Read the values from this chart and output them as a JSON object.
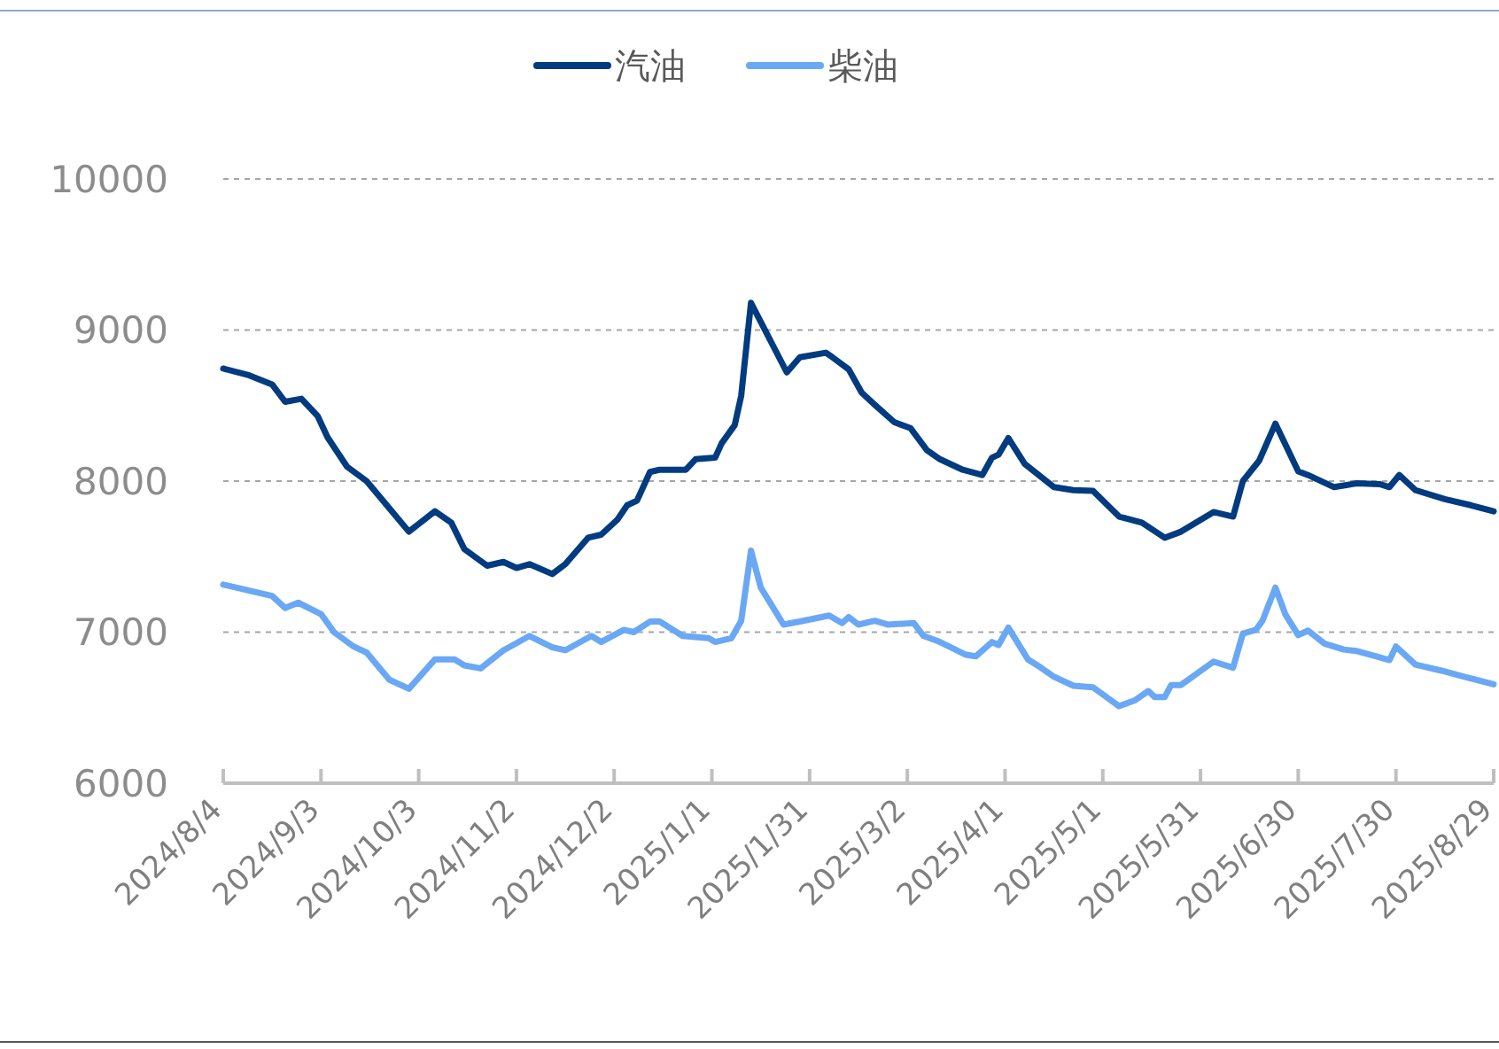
{
  "chart_data": {
    "type": "line",
    "grid": "y",
    "legend": "top",
    "line_style": "solid",
    "marker": "none",
    "xlim": [
      "2024-08-04",
      "2025-08-29"
    ],
    "xticks": [
      {
        "value": "2024-08-04",
        "label": "2024/8/4"
      },
      {
        "value": "2024-09-03",
        "label": "2024/9/3"
      },
      {
        "value": "2024-10-03",
        "label": "2024/10/3"
      },
      {
        "value": "2024-11-02",
        "label": "2024/11/2"
      },
      {
        "value": "2024-12-02",
        "label": "2024/12/2"
      },
      {
        "value": "2025-01-01",
        "label": "2025/1/1"
      },
      {
        "value": "2025-01-31",
        "label": "2025/1/31"
      },
      {
        "value": "2025-03-02",
        "label": "2025/3/2"
      },
      {
        "value": "2025-04-01",
        "label": "2025/4/1"
      },
      {
        "value": "2025-05-01",
        "label": "2025/5/1"
      },
      {
        "value": "2025-05-31",
        "label": "2025/5/31"
      },
      {
        "value": "2025-06-30",
        "label": "2025/6/30"
      },
      {
        "value": "2025-07-30",
        "label": "2025/7/30"
      },
      {
        "value": "2025-08-29",
        "label": "2025/8/29"
      }
    ],
    "ylim": [
      6000,
      10000
    ],
    "yticks": [
      6000,
      7000,
      8000,
      9000,
      10000
    ],
    "series": [
      {
        "name": "汽油",
        "color": "#033b80",
        "x": [
          "2024-08-04",
          "2024-08-12",
          "2024-08-19",
          "2024-08-23",
          "2024-08-28",
          "2024-09-02",
          "2024-09-05",
          "2024-09-11",
          "2024-09-17",
          "2024-09-24",
          "2024-09-30",
          "2024-10-08",
          "2024-10-13",
          "2024-10-17",
          "2024-10-24",
          "2024-10-29",
          "2024-11-02",
          "2024-11-06",
          "2024-11-13",
          "2024-11-17",
          "2024-11-24",
          "2024-11-28",
          "2024-12-03",
          "2024-12-06",
          "2024-12-09",
          "2024-12-13",
          "2024-12-16",
          "2024-12-24",
          "2024-12-27",
          "2025-01-02",
          "2025-01-04",
          "2025-01-08",
          "2025-01-10",
          "2025-01-13",
          "2025-01-24",
          "2025-01-28",
          "2025-02-05",
          "2025-02-07",
          "2025-02-12",
          "2025-02-16",
          "2025-02-20",
          "2025-02-26",
          "2025-03-03",
          "2025-03-08",
          "2025-03-12",
          "2025-03-19",
          "2025-03-25",
          "2025-03-28",
          "2025-03-30",
          "2025-04-02",
          "2025-04-07",
          "2025-04-16",
          "2025-04-22",
          "2025-04-28",
          "2025-05-06",
          "2025-05-13",
          "2025-05-20",
          "2025-05-25",
          "2025-06-04",
          "2025-06-10",
          "2025-06-13",
          "2025-06-18",
          "2025-06-23",
          "2025-06-30",
          "2025-07-03",
          "2025-07-11",
          "2025-07-18",
          "2025-07-25",
          "2025-07-28",
          "2025-07-31",
          "2025-08-05",
          "2025-08-14",
          "2025-08-22",
          "2025-08-29"
        ],
        "values": [
          8745,
          8700,
          8640,
          8525,
          8545,
          8430,
          8290,
          8095,
          8000,
          7820,
          7665,
          7800,
          7725,
          7550,
          7440,
          7465,
          7425,
          7450,
          7385,
          7450,
          7625,
          7645,
          7745,
          7840,
          7870,
          8060,
          8075,
          8075,
          8145,
          8155,
          8250,
          8370,
          8565,
          9180,
          8720,
          8820,
          8850,
          8820,
          8740,
          8585,
          8505,
          8390,
          8350,
          8205,
          8145,
          8075,
          8040,
          8155,
          8175,
          8285,
          8115,
          7960,
          7940,
          7935,
          7765,
          7725,
          7625,
          7665,
          7795,
          7765,
          8000,
          8135,
          8380,
          8065,
          8040,
          7960,
          7985,
          7980,
          7960,
          8040,
          7940,
          7880,
          7840,
          7800
        ]
      },
      {
        "name": "柴油",
        "color": "#6aa8f5",
        "x": [
          "2024-08-04",
          "2024-08-12",
          "2024-08-19",
          "2024-08-23",
          "2024-08-27",
          "2024-09-03",
          "2024-09-07",
          "2024-09-13",
          "2024-09-17",
          "2024-09-24",
          "2024-09-30",
          "2024-10-08",
          "2024-10-14",
          "2024-10-17",
          "2024-10-22",
          "2024-10-29",
          "2024-11-01",
          "2024-11-06",
          "2024-11-13",
          "2024-11-17",
          "2024-11-25",
          "2024-11-28",
          "2024-12-05",
          "2024-12-08",
          "2024-12-13",
          "2024-12-16",
          "2024-12-23",
          "2024-12-31",
          "2025-01-02",
          "2025-01-07",
          "2025-01-10",
          "2025-01-13",
          "2025-01-16",
          "2025-01-23",
          "2025-01-29",
          "2025-02-06",
          "2025-02-10",
          "2025-02-12",
          "2025-02-15",
          "2025-02-20",
          "2025-02-24",
          "2025-03-04",
          "2025-03-07",
          "2025-03-12",
          "2025-03-20",
          "2025-03-23",
          "2025-03-28",
          "2025-03-30",
          "2025-04-02",
          "2025-04-08",
          "2025-04-12",
          "2025-04-16",
          "2025-04-22",
          "2025-04-28",
          "2025-05-06",
          "2025-05-11",
          "2025-05-15",
          "2025-05-17",
          "2025-05-20",
          "2025-05-22",
          "2025-05-25",
          "2025-06-04",
          "2025-06-10",
          "2025-06-13",
          "2025-06-17",
          "2025-06-19",
          "2025-06-23",
          "2025-06-26",
          "2025-06-30",
          "2025-07-03",
          "2025-07-08",
          "2025-07-14",
          "2025-07-18",
          "2025-07-24",
          "2025-07-28",
          "2025-07-30",
          "2025-08-05",
          "2025-08-13",
          "2025-08-20",
          "2025-08-29"
        ],
        "values": [
          7315,
          7275,
          7240,
          7160,
          7195,
          7120,
          7000,
          6905,
          6865,
          6685,
          6625,
          6820,
          6820,
          6780,
          6760,
          6880,
          6915,
          6975,
          6900,
          6880,
          6975,
          6935,
          7015,
          7000,
          7070,
          7070,
          6975,
          6960,
          6935,
          6960,
          7075,
          7540,
          7295,
          7050,
          7075,
          7110,
          7060,
          7100,
          7050,
          7075,
          7050,
          7060,
          6975,
          6935,
          6850,
          6840,
          6935,
          6915,
          7030,
          6820,
          6765,
          6705,
          6645,
          6635,
          6510,
          6550,
          6610,
          6570,
          6570,
          6650,
          6650,
          6805,
          6765,
          6990,
          7015,
          7075,
          7295,
          7120,
          6980,
          7010,
          6925,
          6885,
          6875,
          6840,
          6815,
          6905,
          6785,
          6745,
          6705,
          6655
        ]
      }
    ]
  }
}
